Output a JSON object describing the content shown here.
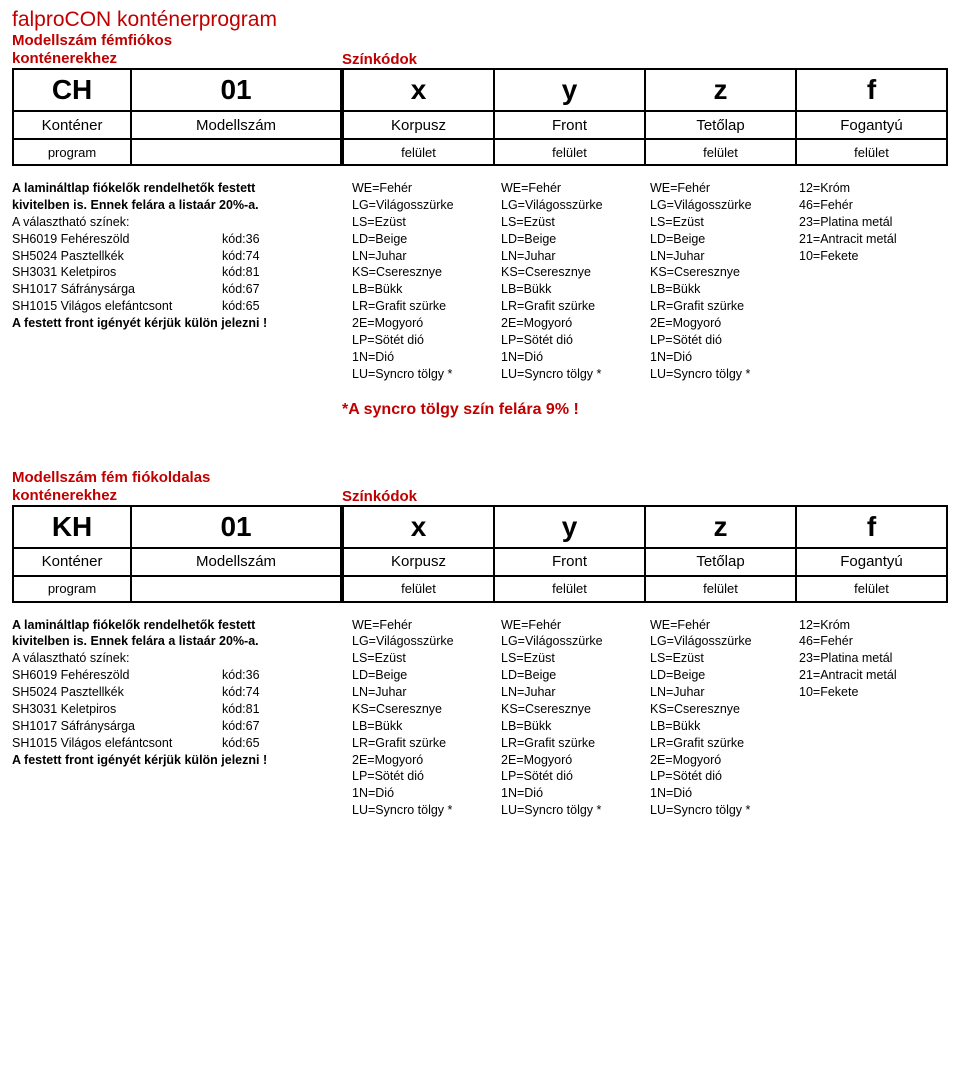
{
  "main_title": "falproCON konténerprogram",
  "sections": [
    {
      "subtitle": "Modellszám fémfiókos\nkonténerekhez",
      "color_codes_label": "Színkódok",
      "left_code": {
        "big1": "CH",
        "big2": "01",
        "mid1": "Konténer",
        "mid2": "Modellszám",
        "small": "program"
      },
      "right_code": {
        "big": [
          "x",
          "y",
          "z",
          "f"
        ],
        "mid": [
          "Korpusz",
          "Front",
          "Tetőlap",
          "Fogantyú"
        ],
        "small": [
          "felület",
          "felület",
          "felület",
          "felület"
        ]
      },
      "left_text": {
        "bold1": "A lamináltlap fiókelők rendelhetők festett",
        "bold2": "kivitelben is. Ennek felára a listaár 20%-a.",
        "line3": "A választható színek:",
        "colors": [
          [
            "SH6019 Fehéreszöld",
            "kód:36"
          ],
          [
            "SH5024 Pasztellkék",
            "kód:74"
          ],
          [
            "SH3031 Keletpiros",
            "kód:81"
          ],
          [
            "SH1017 Sáfránysárga",
            "kód:67"
          ],
          [
            "SH1015 Világos elefántcsont",
            "kód:65"
          ]
        ],
        "bold_last": "A festett front igényét kérjük külön jelezni !"
      },
      "columns": [
        [
          "WE=Fehér",
          "LG=Világosszürke",
          "LS=Ezüst",
          "LD=Beige",
          "LN=Juhar",
          "KS=Cseresznye",
          "LB=Bükk",
          "LR=Grafit szürke",
          "2E=Mogyoró",
          "LP=Sötét dió",
          "1N=Dió",
          "LU=Syncro tölgy *"
        ],
        [
          "WE=Fehér",
          "LG=Világosszürke",
          "LS=Ezüst",
          "LD=Beige",
          "LN=Juhar",
          "KS=Cseresznye",
          "LB=Bükk",
          "LR=Grafit szürke",
          "2E=Mogyoró",
          "LP=Sötét dió",
          "1N=Dió",
          "LU=Syncro tölgy *"
        ],
        [
          "WE=Fehér",
          "LG=Világosszürke",
          "LS=Ezüst",
          "LD=Beige",
          "LN=Juhar",
          "KS=Cseresznye",
          "LB=Bükk",
          "LR=Grafit szürke",
          "2E=Mogyoró",
          "LP=Sötét dió",
          "1N=Dió",
          "LU=Syncro tölgy *"
        ],
        [
          "12=Króm",
          "46=Fehér",
          "23=Platina metál",
          "21=Antracit metál",
          "10=Fekete"
        ]
      ],
      "note": "*A syncro tölgy szín felára 9% !"
    },
    {
      "subtitle": "Modellszám fém fiókoldalas\nkonténerekhez",
      "color_codes_label": "Színkódok",
      "left_code": {
        "big1": "KH",
        "big2": "01",
        "mid1": "Konténer",
        "mid2": "Modellszám",
        "small": "program"
      },
      "right_code": {
        "big": [
          "x",
          "y",
          "z",
          "f"
        ],
        "mid": [
          "Korpusz",
          "Front",
          "Tetőlap",
          "Fogantyú"
        ],
        "small": [
          "felület",
          "felület",
          "felület",
          "felület"
        ]
      },
      "left_text": {
        "bold1": "A lamináltlap fiókelők rendelhetők festett",
        "bold2": "kivitelben is. Ennek felára a listaár 20%-a.",
        "line3": "A választható színek:",
        "colors": [
          [
            "SH6019 Fehéreszöld",
            "kód:36"
          ],
          [
            "SH5024 Pasztellkék",
            "kód:74"
          ],
          [
            "SH3031 Keletpiros",
            "kód:81"
          ],
          [
            "SH1017 Sáfránysárga",
            "kód:67"
          ],
          [
            "SH1015 Világos elefántcsont",
            "kód:65"
          ]
        ],
        "bold_last": "A festett front igényét kérjük külön jelezni !"
      },
      "columns": [
        [
          "WE=Fehér",
          "LG=Világosszürke",
          "LS=Ezüst",
          "LD=Beige",
          "LN=Juhar",
          "KS=Cseresznye",
          "LB=Bükk",
          "LR=Grafit szürke",
          "2E=Mogyoró",
          "LP=Sötét dió",
          "1N=Dió",
          "LU=Syncro tölgy *"
        ],
        [
          "WE=Fehér",
          "LG=Világosszürke",
          "LS=Ezüst",
          "LD=Beige",
          "LN=Juhar",
          "KS=Cseresznye",
          "LB=Bükk",
          "LR=Grafit szürke",
          "2E=Mogyoró",
          "LP=Sötét dió",
          "1N=Dió",
          "LU=Syncro tölgy *"
        ],
        [
          "WE=Fehér",
          "LG=Világosszürke",
          "LS=Ezüst",
          "LD=Beige",
          "LN=Juhar",
          "KS=Cseresznye",
          "LB=Bükk",
          "LR=Grafit szürke",
          "2E=Mogyoró",
          "LP=Sötét dió",
          "1N=Dió",
          "LU=Syncro tölgy *"
        ],
        [
          "12=Króm",
          "46=Fehér",
          "23=Platina metál",
          "21=Antracit metál",
          "10=Fekete"
        ]
      ],
      "note": ""
    }
  ]
}
